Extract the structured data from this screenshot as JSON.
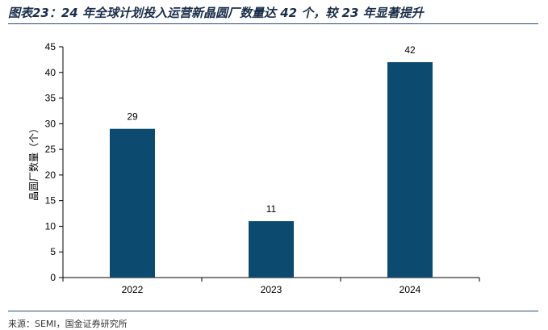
{
  "header": {
    "title": "图表23：24 年全球计划投入运营新晶圆厂数量达 42 个，较 23 年显著提升"
  },
  "footer": {
    "source": "来源：SEMI，国金证券研究所"
  },
  "colors": {
    "bar": "#0d4a6f",
    "rule": "#2a4d6e",
    "title": "#1a2e4a"
  },
  "chart_data": {
    "type": "bar",
    "title": "",
    "xlabel": "",
    "ylabel": "晶圆厂数量（个）",
    "categories": [
      "2022",
      "2023",
      "2024"
    ],
    "values": [
      29,
      11,
      42
    ],
    "data_labels": [
      "29",
      "11",
      "42"
    ],
    "ylim": [
      0,
      45
    ],
    "yticks": [
      "0",
      "5",
      "10",
      "15",
      "20",
      "25",
      "30",
      "35",
      "40",
      "45"
    ],
    "grid": false,
    "legend": "none"
  }
}
